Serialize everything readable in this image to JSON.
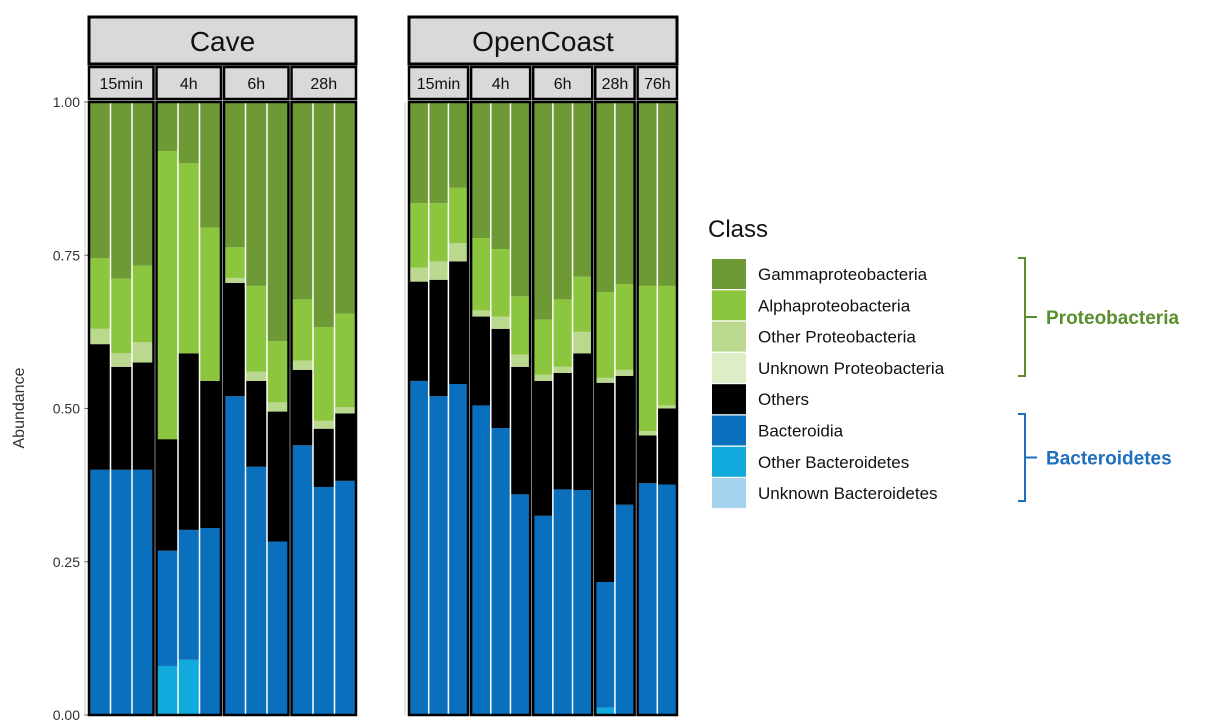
{
  "chart_data": {
    "type": "bar",
    "stacked": true,
    "faceted": true,
    "ylabel": "Abundance",
    "ylim": [
      0,
      1
    ],
    "yticks": [
      "0.00",
      "0.25",
      "0.50",
      "0.75",
      "1.00"
    ],
    "legend": {
      "title": "Class",
      "placement": "right",
      "groups": [
        {
          "label": "Proteobacteria",
          "color": "#5a8f2e",
          "members": [
            "Gammaproteobacteria",
            "Alphaproteobacteria",
            "Other Proteobacteria",
            "Unknown Proteobacteria"
          ]
        },
        {
          "label": "Bacteroidetes",
          "color": "#1e6fbf",
          "members": [
            "Bacteroidia",
            "Other Bacteroidetes",
            "Unknown Bacteroidetes"
          ]
        }
      ]
    },
    "series": [
      {
        "name": "Unknown Bacteroidetes",
        "color": "#a5d3ed"
      },
      {
        "name": "Other Bacteroidetes",
        "color": "#12a9dc"
      },
      {
        "name": "Bacteroidia",
        "color": "#0a6fbd"
      },
      {
        "name": "Others",
        "color": "#000000"
      },
      {
        "name": "Unknown Proteobacteria",
        "color": "#ddedc6"
      },
      {
        "name": "Other Proteobacteria",
        "color": "#bad98f"
      },
      {
        "name": "Alphaproteobacteria",
        "color": "#8cc63e"
      },
      {
        "name": "Gammaproteobacteria",
        "color": "#6d9a34"
      }
    ],
    "panels": [
      {
        "title": "Cave",
        "groups": [
          {
            "label": "15min",
            "samples": [
              [
                0,
                0,
                0.4,
                0.205,
                0,
                0.025,
                0.115,
                0.255
              ],
              [
                0,
                0,
                0.4,
                0.168,
                0,
                0.022,
                0.122,
                0.288
              ],
              [
                0,
                0,
                0.4,
                0.175,
                0,
                0.033,
                0.125,
                0.267
              ]
            ]
          },
          {
            "label": "4h",
            "samples": [
              [
                0,
                0.08,
                0.188,
                0.182,
                0,
                0,
                0.47,
                0.08
              ],
              [
                0,
                0.09,
                0.212,
                0.288,
                0,
                0,
                0.31,
                0.1
              ],
              [
                0,
                0,
                0.305,
                0.24,
                0,
                0,
                0.25,
                0.205
              ]
            ]
          },
          {
            "label": "6h",
            "samples": [
              [
                0,
                0,
                0.52,
                0.185,
                0,
                0.008,
                0.05,
                0.237
              ],
              [
                0,
                0,
                0.405,
                0.14,
                0,
                0.015,
                0.14,
                0.3
              ],
              [
                0,
                0,
                0.283,
                0.212,
                0,
                0.015,
                0.1,
                0.39
              ]
            ]
          },
          {
            "label": "28h",
            "samples": [
              [
                0,
                0,
                0.44,
                0.123,
                0,
                0.015,
                0.1,
                0.322
              ],
              [
                0,
                0,
                0.372,
                0.095,
                0,
                0.013,
                0.153,
                0.367
              ],
              [
                0,
                0,
                0.382,
                0.11,
                0,
                0.01,
                0.153,
                0.345
              ]
            ]
          }
        ]
      },
      {
        "title": "OpenCoast",
        "groups": [
          {
            "label": "15min",
            "samples": [
              [
                0,
                0,
                0.545,
                0.162,
                0,
                0.023,
                0.105,
                0.165
              ],
              [
                0,
                0,
                0.52,
                0.19,
                0,
                0.03,
                0.095,
                0.165
              ],
              [
                0,
                0,
                0.54,
                0.2,
                0,
                0.03,
                0.09,
                0.14
              ]
            ]
          },
          {
            "label": "4h",
            "samples": [
              [
                0,
                0,
                0.505,
                0.145,
                0,
                0.01,
                0.118,
                0.222
              ],
              [
                0,
                0,
                0.468,
                0.162,
                0,
                0.02,
                0.11,
                0.24
              ],
              [
                0,
                0,
                0.36,
                0.208,
                0,
                0.02,
                0.095,
                0.317
              ]
            ]
          },
          {
            "label": "6h",
            "samples": [
              [
                0,
                0,
                0.325,
                0.22,
                0,
                0.01,
                0.09,
                0.355
              ],
              [
                0,
                0,
                0.368,
                0.19,
                0,
                0.01,
                0.11,
                0.322
              ],
              [
                0,
                0,
                0.367,
                0.223,
                0,
                0.035,
                0.09,
                0.285
              ]
            ]
          },
          {
            "label": "28h",
            "samples": [
              [
                0,
                0.012,
                0.205,
                0.325,
                0,
                0.008,
                0.14,
                0.31
              ],
              [
                0,
                0,
                0.343,
                0.21,
                0,
                0.01,
                0.14,
                0.297
              ]
            ]
          },
          {
            "label": "76h",
            "samples": [
              [
                0,
                0,
                0.378,
                0.078,
                0,
                0.007,
                0.237,
                0.3
              ],
              [
                0,
                0,
                0.376,
                0.124,
                0,
                0.005,
                0.195,
                0.3
              ]
            ]
          }
        ]
      }
    ]
  }
}
